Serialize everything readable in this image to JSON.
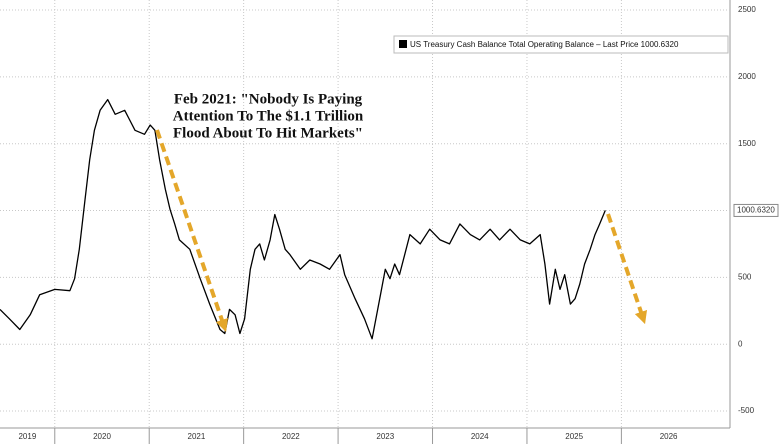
{
  "chart_data": {
    "type": "line",
    "x": [
      2019.42,
      2019.52,
      2019.63,
      2019.74,
      2019.84,
      2020.0,
      2020.16,
      2020.21,
      2020.26,
      2020.32,
      2020.37,
      2020.42,
      2020.48,
      2020.56,
      2020.64,
      2020.74,
      2020.85,
      2020.95,
      2021.01,
      2021.06,
      2021.11,
      2021.17,
      2021.22,
      2021.27,
      2021.32,
      2021.43,
      2021.54,
      2021.64,
      2021.75,
      2021.8,
      2021.85,
      2021.91,
      2021.96,
      2022.01,
      2022.07,
      2022.12,
      2022.17,
      2022.22,
      2022.28,
      2022.33,
      2022.38,
      2022.44,
      2022.49,
      2022.6,
      2022.7,
      2022.81,
      2022.91,
      2023.02,
      2023.07,
      2023.18,
      2023.28,
      2023.36,
      2023.42,
      2023.5,
      2023.55,
      2023.6,
      2023.65,
      2023.76,
      2023.87,
      2023.97,
      2024.08,
      2024.18,
      2024.29,
      2024.4,
      2024.5,
      2024.61,
      2024.71,
      2024.82,
      2024.93,
      2025.03,
      2025.14,
      2025.19,
      2025.24,
      2025.3,
      2025.35,
      2025.4,
      2025.46,
      2025.51,
      2025.56,
      2025.61,
      2025.67,
      2025.72,
      2025.77,
      2025.83
    ],
    "series": [
      {
        "name": "US Treasury Cash Balance Total Operating Balance – Last Price 1000.6320",
        "color": "#000000",
        "values": [
          260,
          190,
          110,
          220,
          370,
          410,
          400,
          490,
          710,
          1080,
          1380,
          1600,
          1750,
          1830,
          1720,
          1750,
          1600,
          1570,
          1640,
          1600,
          1380,
          1160,
          1010,
          900,
          780,
          710,
          490,
          300,
          110,
          80,
          260,
          220,
          80,
          190,
          560,
          710,
          750,
          630,
          780,
          970,
          860,
          710,
          670,
          560,
          630,
          600,
          560,
          670,
          520,
          340,
          190,
          40,
          260,
          560,
          490,
          600,
          520,
          820,
          750,
          860,
          780,
          750,
          900,
          820,
          780,
          860,
          780,
          860,
          780,
          750,
          820,
          600,
          300,
          560,
          410,
          520,
          300,
          340,
          450,
          600,
          710,
          820,
          900,
          1000.632
        ]
      }
    ],
    "last_value": {
      "value": 1000.632,
      "label": "1000.6320"
    },
    "annotation": [
      "Feb 2021: \"Nobody Is Paying",
      "Attention To The $1.1 Trillion",
      "Flood About To Hit Markets\""
    ],
    "xlim": [
      2019.42,
      2027.15
    ],
    "xticks": [
      2019,
      2020,
      2021,
      2022,
      2023,
      2024,
      2025,
      2026
    ],
    "ylim": [
      -627,
      2575
    ],
    "yticks": [
      -500,
      0,
      500,
      1000,
      1500,
      2000,
      2500
    ],
    "grid": true
  }
}
